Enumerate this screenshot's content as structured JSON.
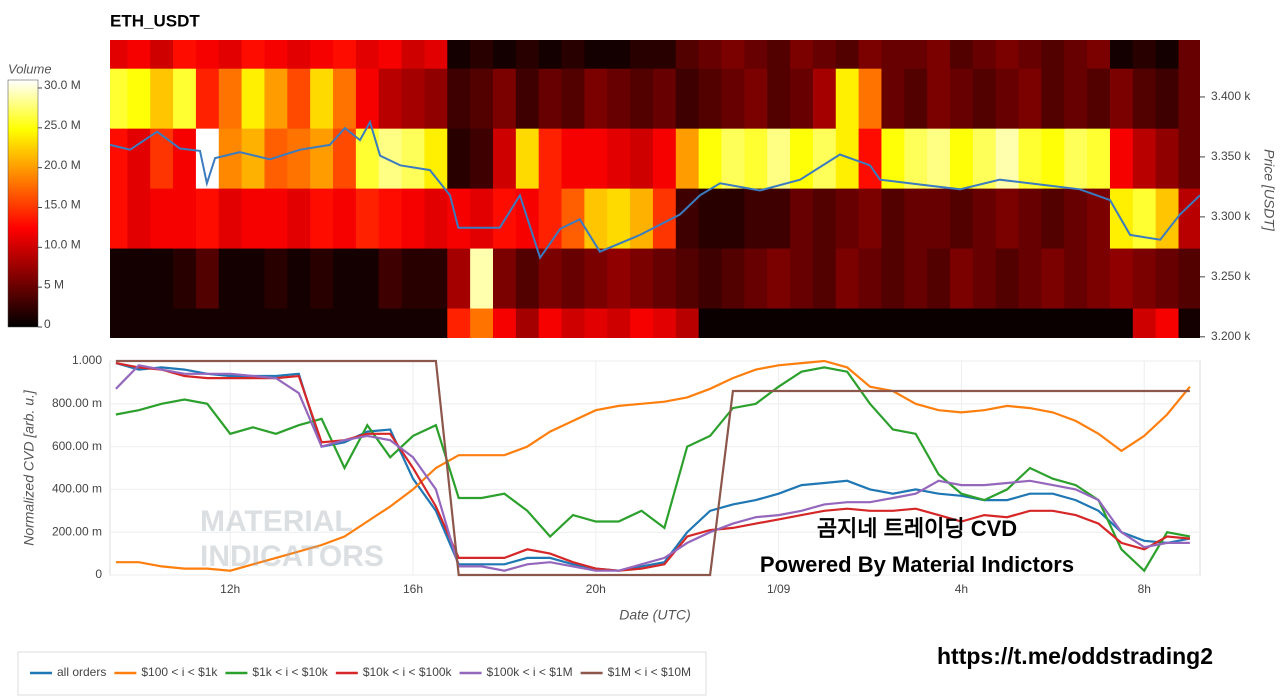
{
  "chart_data": [
    {
      "type": "heatmap",
      "title": "ETH_USDT",
      "xlim": [
        9.37,
        33.22
      ],
      "xbins": [
        9.25,
        9.75,
        10.25,
        10.75,
        11.25,
        11.75,
        12.25,
        12.75,
        13.25,
        13.75,
        14.25,
        14.75,
        15.25,
        15.75,
        16.25,
        16.75,
        17.25,
        17.75,
        18.25,
        18.75,
        19.25,
        19.75,
        20.25,
        20.75,
        21.25,
        21.75,
        22.25,
        22.75,
        23.25,
        23.75,
        24.25,
        24.75,
        25.25,
        25.75,
        26.25,
        26.75,
        27.25,
        27.75,
        28.25,
        28.75,
        29.25,
        29.75,
        30.25,
        30.75,
        31.25,
        31.75,
        32.25,
        32.75,
        33.25
      ],
      "ybins": [
        3199,
        3224,
        3274,
        3324,
        3374,
        3424,
        3447.5
      ],
      "z": [
        [
          1000000.0,
          1000000.0,
          1000000.0,
          1000000.0,
          1000000.0,
          1000000.0,
          1000000.0,
          1000000.0,
          1000000.0,
          1000000.0,
          1000000.0,
          1000000.0,
          1000000.0,
          1000000.0,
          1000000.0,
          14000000.0,
          18000000.0,
          12000000.0,
          8000000.0,
          12000000.0,
          10000000.0,
          11000000.0,
          10000000.0,
          12000000.0,
          11000000.0,
          9000000.0,
          500000.0,
          500000.0,
          500000.0,
          500000.0,
          500000.0,
          500000.0,
          500000.0,
          500000.0,
          500000.0,
          500000.0,
          500000.0,
          500000.0,
          500000.0,
          500000.0,
          500000.0,
          500000.0,
          500000.0,
          500000.0,
          500000.0,
          10000000.0,
          12000000.0,
          1000000.0
        ],
        [
          1000000.0,
          1000000.0,
          1000000.0,
          2000000.0,
          4000000.0,
          1000000.0,
          1000000.0,
          2000000.0,
          1000000.0,
          2000000.0,
          1000000.0,
          1000000.0,
          3000000.0,
          2000000.0,
          2000000.0,
          8000000.0,
          29000000.0,
          6000000.0,
          4000000.0,
          6000000.0,
          5000000.0,
          6000000.0,
          7000000.0,
          6000000.0,
          5000000.0,
          4000000.0,
          3000000.0,
          4000000.0,
          5000000.0,
          6000000.0,
          5000000.0,
          4000000.0,
          6000000.0,
          5000000.0,
          4000000.0,
          5000000.0,
          4000000.0,
          6000000.0,
          5000000.0,
          4000000.0,
          5000000.0,
          6000000.0,
          5000000.0,
          6000000.0,
          7000000.0,
          6000000.0,
          5000000.0,
          4000000.0
        ],
        [
          13000000.0,
          11000000.0,
          12000000.0,
          12000000.0,
          13000000.0,
          11000000.0,
          12000000.0,
          12000000.0,
          11000000.0,
          13000000.0,
          12000000.0,
          14000000.0,
          13000000.0,
          12000000.0,
          11000000.0,
          12000000.0,
          11000000.0,
          13000000.0,
          12000000.0,
          14000000.0,
          17000000.0,
          22000000.0,
          23000000.0,
          21000000.0,
          15000000.0,
          3000000.0,
          2000000.0,
          2000000.0,
          3000000.0,
          3000000.0,
          5000000.0,
          4000000.0,
          5000000.0,
          6000000.0,
          4000000.0,
          5000000.0,
          5000000.0,
          4000000.0,
          5000000.0,
          6000000.0,
          5000000.0,
          4000000.0,
          5000000.0,
          6000000.0,
          24000000.0,
          26000000.0,
          22000000.0,
          9000000.0
        ],
        [
          13000000.0,
          11000000.0,
          15000000.0,
          12000000.0,
          31000000.0,
          19000000.0,
          21000000.0,
          17000000.0,
          18000000.0,
          20000000.0,
          16000000.0,
          26000000.0,
          28000000.0,
          27000000.0,
          24000000.0,
          2000000.0,
          3000000.0,
          10000000.0,
          23000000.0,
          14000000.0,
          12000000.0,
          12000000.0,
          11000000.0,
          10000000.0,
          12000000.0,
          20000000.0,
          25000000.0,
          27000000.0,
          26000000.0,
          28000000.0,
          25000000.0,
          27000000.0,
          24000000.0,
          13000000.0,
          25000000.0,
          27000000.0,
          28000000.0,
          25000000.0,
          27000000.0,
          29000000.0,
          26000000.0,
          25000000.0,
          27000000.0,
          26000000.0,
          12000000.0,
          9000000.0,
          7000000.0,
          5000000.0
        ],
        [
          26000000.0,
          25000000.0,
          22000000.0,
          26000000.0,
          14000000.0,
          18000000.0,
          24000000.0,
          20000000.0,
          16000000.0,
          23000000.0,
          18000000.0,
          12000000.0,
          9000000.0,
          8000000.0,
          7000000.0,
          3000000.0,
          4000000.0,
          6000000.0,
          3000000.0,
          5000000.0,
          4000000.0,
          6000000.0,
          5000000.0,
          4000000.0,
          5000000.0,
          3000000.0,
          4000000.0,
          5000000.0,
          6000000.0,
          4000000.0,
          5000000.0,
          8000000.0,
          24000000.0,
          18000000.0,
          5000000.0,
          4000000.0,
          6000000.0,
          5000000.0,
          4000000.0,
          5000000.0,
          6000000.0,
          4000000.0,
          5000000.0,
          4000000.0,
          6000000.0,
          4000000.0,
          3000000.0,
          5000000.0
        ],
        [
          11000000.0,
          12000000.0,
          10000000.0,
          13000000.0,
          12000000.0,
          11000000.0,
          13000000.0,
          12000000.0,
          11000000.0,
          12000000.0,
          13000000.0,
          11000000.0,
          12000000.0,
          10000000.0,
          11000000.0,
          1000000.0,
          2000000.0,
          1000000.0,
          2000000.0,
          1000000.0,
          2000000.0,
          1000000.0,
          1000000.0,
          2000000.0,
          2000000.0,
          4000000.0,
          5000000.0,
          6000000.0,
          5000000.0,
          4000000.0,
          6000000.0,
          5000000.0,
          4000000.0,
          6000000.0,
          5000000.0,
          5000000.0,
          6000000.0,
          4000000.0,
          5000000.0,
          6000000.0,
          5000000.0,
          4000000.0,
          5000000.0,
          6000000.0,
          1000000.0,
          2000000.0,
          1000000.0,
          5000000.0
        ]
      ],
      "zlim": [
        0,
        31000000
      ],
      "colorbar_title": "Volume",
      "zticks": [
        0,
        {
          "value": 5000000,
          "label": "5 M"
        },
        {
          "value": 10000000,
          "label": "10.0 M"
        },
        {
          "value": 15000000,
          "label": "15.0 M"
        },
        {
          "value": 20000000,
          "label": "20.0 M"
        },
        {
          "value": 25000000,
          "label": "25.0 M"
        },
        {
          "value": 30000000,
          "label": "30.0 M"
        }
      ],
      "ylim": [
        3199,
        3447.5
      ],
      "yticks": [
        {
          "value": 3200,
          "label": "3.200 k"
        },
        {
          "value": 3250,
          "label": "3.250 k"
        },
        {
          "value": 3300,
          "label": "3.300 k"
        },
        {
          "value": 3350,
          "label": "3.350 k"
        },
        {
          "value": 3400,
          "label": "3.400 k"
        }
      ],
      "y_label": "Price [USDT]",
      "line": {
        "color": "#3b7bbf",
        "x": [
          9.37,
          9.81,
          10.4,
          10.9,
          11.34,
          11.49,
          11.67,
          12.21,
          12.87,
          13.53,
          14.18,
          14.51,
          14.84,
          15.06,
          15.28,
          15.72,
          16.37,
          16.81,
          16.99,
          17.9,
          18.34,
          18.78,
          19.22,
          19.65,
          20.09,
          20.97,
          21.84,
          22.28,
          22.72,
          23.59,
          24.47,
          25.34,
          26.0,
          26.22,
          27.09,
          27.97,
          28.84,
          29.72,
          30.59,
          31.25,
          31.69,
          32.35,
          32.78,
          33.22
        ],
        "values": [
          3360,
          3356,
          3371,
          3357,
          3355,
          3328,
          3349,
          3354,
          3348,
          3356,
          3360,
          3374,
          3364,
          3379,
          3351,
          3343,
          3339,
          3318,
          3291,
          3291,
          3318,
          3266,
          3290,
          3298,
          3271,
          3285,
          3302,
          3318,
          3328,
          3322,
          3331,
          3352,
          3343,
          3331,
          3327,
          3323,
          3331,
          3327,
          3323,
          3314,
          3285,
          3281,
          3302,
          3318
        ]
      }
    },
    {
      "type": "line",
      "x": [
        9.5,
        10,
        10.5,
        11,
        11.5,
        12,
        12.5,
        13,
        13.5,
        14,
        14.5,
        15,
        15.5,
        16,
        16.5,
        17,
        17.5,
        18,
        18.5,
        19,
        19.5,
        20,
        20.5,
        21,
        21.5,
        22,
        22.5,
        23,
        23.5,
        24,
        24.5,
        25,
        25.5,
        26,
        26.5,
        27,
        27.5,
        28,
        28.5,
        29,
        29.5,
        30,
        30.5,
        31,
        31.5,
        32,
        32.5,
        33
      ],
      "xlim": [
        9.37,
        33.22
      ],
      "xticks": [
        {
          "value": 12,
          "label": "12h"
        },
        {
          "value": 16,
          "label": "16h"
        },
        {
          "value": 20,
          "label": "20h"
        },
        {
          "value": 24,
          "label": "1/09"
        },
        {
          "value": 28,
          "label": "4h"
        },
        {
          "value": 32,
          "label": "8h"
        }
      ],
      "ylim": [
        0,
        1
      ],
      "yticks": [
        0,
        {
          "value": 0.2,
          "label": "200.00 m"
        },
        {
          "value": 0.4,
          "label": "400.00 m"
        },
        {
          "value": 0.6,
          "label": "600.00 m"
        },
        {
          "value": 0.8,
          "label": "800.00 m"
        },
        {
          "value": 1,
          "label": "1.000"
        }
      ],
      "x_label": "Date (UTC)",
      "y_label": "Normalized CVD [arb. u.]",
      "grid": true,
      "legend": "bottom-left",
      "series": [
        {
          "name": "all orders",
          "color": "#1f77b4",
          "values": [
            0.99,
            0.96,
            0.97,
            0.96,
            0.94,
            0.93,
            0.93,
            0.93,
            0.94,
            0.6,
            0.62,
            0.67,
            0.68,
            0.45,
            0.3,
            0.05,
            0.05,
            0.05,
            0.08,
            0.08,
            0.05,
            0.03,
            0.02,
            0.04,
            0.06,
            0.2,
            0.3,
            0.33,
            0.35,
            0.38,
            0.42,
            0.43,
            0.44,
            0.4,
            0.38,
            0.4,
            0.38,
            0.37,
            0.35,
            0.35,
            0.38,
            0.38,
            0.35,
            0.3,
            0.2,
            0.16,
            0.15,
            0.17
          ]
        },
        {
          "name": "$100 < i < $1k",
          "color": "#ff7f0e",
          "values": [
            0.06,
            0.06,
            0.04,
            0.03,
            0.03,
            0.02,
            0.05,
            0.08,
            0.11,
            0.14,
            0.18,
            0.25,
            0.32,
            0.4,
            0.5,
            0.56,
            0.56,
            0.56,
            0.6,
            0.67,
            0.72,
            0.77,
            0.79,
            0.8,
            0.81,
            0.83,
            0.87,
            0.92,
            0.96,
            0.98,
            0.99,
            1.0,
            0.97,
            0.88,
            0.86,
            0.8,
            0.77,
            0.76,
            0.77,
            0.79,
            0.78,
            0.76,
            0.72,
            0.66,
            0.58,
            0.65,
            0.75,
            0.88
          ]
        },
        {
          "name": "$1k < i < $10k",
          "color": "#2ca02c",
          "values": [
            0.75,
            0.77,
            0.8,
            0.82,
            0.8,
            0.66,
            0.69,
            0.66,
            0.7,
            0.73,
            0.5,
            0.7,
            0.55,
            0.65,
            0.7,
            0.36,
            0.36,
            0.38,
            0.3,
            0.18,
            0.28,
            0.25,
            0.25,
            0.3,
            0.22,
            0.6,
            0.65,
            0.78,
            0.8,
            0.88,
            0.95,
            0.97,
            0.95,
            0.8,
            0.68,
            0.66,
            0.47,
            0.38,
            0.35,
            0.4,
            0.5,
            0.45,
            0.42,
            0.35,
            0.12,
            0.02,
            0.2,
            0.18
          ]
        },
        {
          "name": "$10k < i < $100k",
          "color": "#d62728",
          "values": [
            0.99,
            0.97,
            0.96,
            0.93,
            0.92,
            0.92,
            0.92,
            0.92,
            0.93,
            0.62,
            0.63,
            0.66,
            0.66,
            0.5,
            0.32,
            0.08,
            0.08,
            0.08,
            0.12,
            0.1,
            0.06,
            0.03,
            0.02,
            0.03,
            0.05,
            0.18,
            0.21,
            0.22,
            0.24,
            0.26,
            0.28,
            0.3,
            0.31,
            0.3,
            0.3,
            0.31,
            0.28,
            0.25,
            0.28,
            0.27,
            0.3,
            0.3,
            0.28,
            0.24,
            0.15,
            0.12,
            0.18,
            0.17
          ]
        },
        {
          "name": "$100k < i < $1M",
          "color": "#9467bd",
          "values": [
            0.87,
            0.98,
            0.96,
            0.94,
            0.94,
            0.94,
            0.93,
            0.92,
            0.85,
            0.6,
            0.63,
            0.65,
            0.63,
            0.55,
            0.4,
            0.04,
            0.04,
            0.02,
            0.05,
            0.06,
            0.04,
            0.02,
            0.02,
            0.05,
            0.08,
            0.15,
            0.2,
            0.24,
            0.27,
            0.28,
            0.3,
            0.33,
            0.34,
            0.34,
            0.36,
            0.38,
            0.44,
            0.42,
            0.42,
            0.43,
            0.44,
            0.42,
            0.4,
            0.35,
            0.2,
            0.13,
            0.15,
            0.15
          ]
        },
        {
          "name": "$1M < i < $10M",
          "color": "#8c564b",
          "values": [
            1,
            1,
            1,
            1,
            1,
            1,
            1,
            1,
            1,
            1,
            1,
            1,
            1,
            1,
            1,
            0,
            0,
            0,
            0,
            0,
            0,
            0,
            0,
            0,
            0,
            0,
            0,
            0.86,
            0.86,
            0.86,
            0.86,
            0.86,
            0.86,
            0.86,
            0.86,
            0.86,
            0.86,
            0.86,
            0.86,
            0.86,
            0.86,
            0.86,
            0.86,
            0.86,
            0.86,
            0.86,
            0.86,
            0.86
          ]
        }
      ]
    }
  ],
  "watermark": [
    "MATERIAL",
    "INDICATORS"
  ],
  "overlay_text": [
    "곰지네 트레이딩 CVD",
    "Powered By Material Indictors"
  ],
  "link": "https://t.me/oddstrading2"
}
